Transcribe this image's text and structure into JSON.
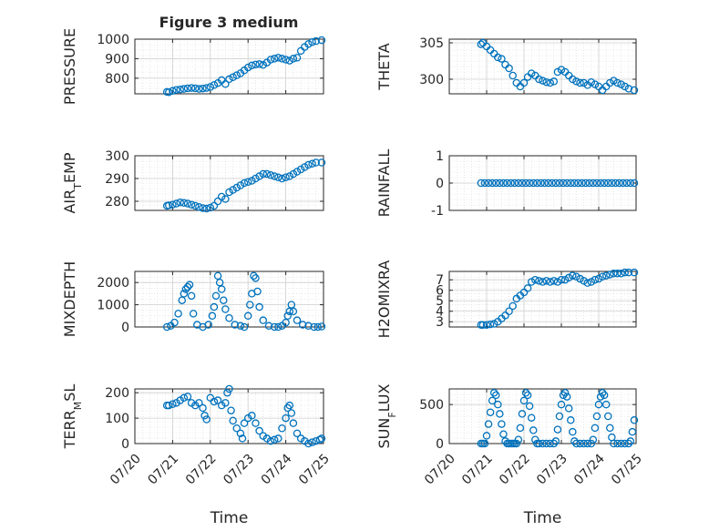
{
  "figure": {
    "title": "Figure 3 medium",
    "marker_color": "#0072BD",
    "axis_color": "#262626",
    "grid_color": "#d9d9d9",
    "x_tick_labels": [
      "07/20",
      "07/21",
      "07/22",
      "07/23",
      "07/24",
      "07/25"
    ],
    "xlabel": "Time"
  },
  "chart_data": [
    {
      "type": "scatter",
      "ylabel": "PRESSURE",
      "ylim": [
        720,
        1000
      ],
      "yticks": [
        800,
        900,
        1000
      ],
      "xlim": [
        0,
        5
      ],
      "x_tick_labels": [],
      "grid": true,
      "minor_grid": true,
      "x": [
        0.85,
        0.9,
        1.0,
        1.1,
        1.2,
        1.3,
        1.4,
        1.5,
        1.6,
        1.7,
        1.8,
        1.9,
        2.0,
        2.1,
        2.2,
        2.3,
        2.4,
        2.5,
        2.6,
        2.7,
        2.8,
        2.9,
        3.0,
        3.1,
        3.2,
        3.3,
        3.4,
        3.5,
        3.6,
        3.7,
        3.8,
        3.9,
        4.0,
        4.1,
        4.2,
        4.3,
        4.4,
        4.5,
        4.6,
        4.7,
        4.8,
        4.95
      ],
      "values": [
        730,
        728,
        735,
        740,
        742,
        745,
        748,
        750,
        748,
        745,
        747,
        750,
        755,
        765,
        775,
        790,
        770,
        795,
        805,
        815,
        825,
        840,
        855,
        865,
        870,
        872,
        868,
        880,
        895,
        900,
        905,
        900,
        895,
        890,
        900,
        905,
        940,
        960,
        975,
        985,
        990,
        995
      ]
    },
    {
      "type": "scatter",
      "ylabel": "THETA",
      "ylim": [
        298,
        305.5
      ],
      "yticks": [
        300,
        305
      ],
      "xlim": [
        0,
        5
      ],
      "x_tick_labels": [],
      "grid": true,
      "minor_grid": true,
      "x": [
        0.85,
        0.9,
        1.0,
        1.1,
        1.2,
        1.3,
        1.4,
        1.5,
        1.6,
        1.7,
        1.8,
        1.9,
        2.0,
        2.1,
        2.2,
        2.3,
        2.4,
        2.5,
        2.6,
        2.7,
        2.8,
        2.9,
        3.0,
        3.1,
        3.2,
        3.3,
        3.4,
        3.5,
        3.6,
        3.7,
        3.8,
        3.9,
        4.0,
        4.1,
        4.2,
        4.3,
        4.4,
        4.5,
        4.6,
        4.7,
        4.8,
        4.95
      ],
      "values": [
        304.8,
        305.0,
        304.5,
        304.0,
        303.5,
        303.0,
        302.8,
        302.0,
        301.5,
        300.5,
        299.5,
        299.0,
        299.5,
        300.3,
        300.8,
        300.5,
        300.0,
        299.8,
        299.6,
        299.5,
        299.7,
        301.0,
        301.3,
        301.0,
        300.5,
        300.0,
        299.7,
        299.5,
        299.5,
        299.2,
        299.6,
        299.3,
        299.0,
        298.5,
        299.0,
        299.5,
        299.8,
        299.5,
        299.3,
        299.0,
        298.7,
        298.5
      ]
    },
    {
      "type": "scatter",
      "ylabel": "AIR_TEMP",
      "ylim": [
        276,
        300
      ],
      "yticks": [
        280,
        290,
        300
      ],
      "xlim": [
        0,
        5
      ],
      "x_tick_labels": [],
      "grid": true,
      "minor_grid": true,
      "x": [
        0.85,
        0.9,
        1.0,
        1.1,
        1.2,
        1.3,
        1.4,
        1.5,
        1.6,
        1.7,
        1.8,
        1.9,
        2.0,
        2.1,
        2.2,
        2.3,
        2.4,
        2.5,
        2.6,
        2.7,
        2.8,
        2.9,
        3.0,
        3.1,
        3.2,
        3.3,
        3.4,
        3.5,
        3.6,
        3.7,
        3.8,
        3.9,
        4.0,
        4.1,
        4.2,
        4.3,
        4.4,
        4.5,
        4.6,
        4.7,
        4.8,
        4.95
      ],
      "values": [
        278,
        278.2,
        278.5,
        279,
        279.5,
        279.3,
        279,
        278.5,
        278,
        277.5,
        277,
        276.8,
        277.2,
        278,
        280,
        282,
        281,
        284,
        285,
        286,
        287,
        288,
        288.5,
        289,
        290,
        291,
        292,
        292,
        291.5,
        291,
        290.5,
        290,
        290.5,
        291,
        292,
        293,
        294,
        295,
        296,
        296.5,
        297,
        297
      ]
    },
    {
      "type": "scatter",
      "ylabel": "RAINFALL",
      "ylim": [
        -1,
        1
      ],
      "yticks": [
        -1,
        0,
        1
      ],
      "xlim": [
        0,
        5
      ],
      "x_tick_labels": [],
      "grid": true,
      "minor_grid": true,
      "x": [
        0.85,
        0.95,
        1.05,
        1.15,
        1.25,
        1.35,
        1.45,
        1.55,
        1.65,
        1.75,
        1.85,
        1.95,
        2.05,
        2.15,
        2.25,
        2.35,
        2.45,
        2.55,
        2.65,
        2.75,
        2.85,
        2.95,
        3.05,
        3.15,
        3.25,
        3.35,
        3.45,
        3.55,
        3.65,
        3.75,
        3.85,
        3.95,
        4.05,
        4.15,
        4.25,
        4.35,
        4.45,
        4.55,
        4.65,
        4.75,
        4.85,
        4.95
      ],
      "values": [
        0,
        0,
        0,
        0,
        0,
        0,
        0,
        0,
        0,
        0,
        0,
        0,
        0,
        0,
        0,
        0,
        0,
        0,
        0,
        0,
        0,
        0,
        0,
        0,
        0,
        0,
        0,
        0,
        0,
        0,
        0,
        0,
        0,
        0,
        0,
        0,
        0,
        0,
        0,
        0,
        0,
        0
      ]
    },
    {
      "type": "scatter",
      "ylabel": "MIXDEPTH",
      "ylim": [
        0,
        2500
      ],
      "yticks": [
        0,
        1000,
        2000
      ],
      "xlim": [
        0,
        5
      ],
      "x_tick_labels": [],
      "grid": true,
      "minor_grid": true,
      "x": [
        0.85,
        0.95,
        1.05,
        1.15,
        1.25,
        1.3,
        1.35,
        1.4,
        1.45,
        1.5,
        1.55,
        1.65,
        1.8,
        1.95,
        2.05,
        2.1,
        2.15,
        2.2,
        2.25,
        2.3,
        2.35,
        2.4,
        2.5,
        2.65,
        2.8,
        2.9,
        3.0,
        3.05,
        3.1,
        3.15,
        3.2,
        3.25,
        3.3,
        3.4,
        3.55,
        3.7,
        3.8,
        3.9,
        4.0,
        4.05,
        4.1,
        4.15,
        4.2,
        4.3,
        4.45,
        4.6,
        4.75,
        4.85,
        4.95
      ],
      "values": [
        0,
        50,
        200,
        600,
        1200,
        1500,
        1700,
        1800,
        1900,
        1400,
        600,
        100,
        0,
        100,
        500,
        900,
        1400,
        2300,
        2000,
        1700,
        1200,
        800,
        400,
        100,
        50,
        0,
        500,
        1000,
        1500,
        2300,
        2200,
        1600,
        900,
        300,
        50,
        0,
        0,
        50,
        200,
        500,
        700,
        1000,
        700,
        300,
        100,
        50,
        0,
        0,
        20
      ]
    },
    {
      "type": "scatter",
      "ylabel": "H2OMIXRA",
      "ylim": [
        2.5,
        7.8
      ],
      "yticks": [
        3,
        4,
        5,
        6,
        7
      ],
      "xlim": [
        0,
        5
      ],
      "x_tick_labels": [],
      "grid": true,
      "minor_grid": true,
      "x": [
        0.85,
        0.9,
        1.0,
        1.1,
        1.2,
        1.3,
        1.4,
        1.5,
        1.6,
        1.7,
        1.8,
        1.9,
        2.0,
        2.1,
        2.2,
        2.3,
        2.4,
        2.5,
        2.6,
        2.7,
        2.8,
        2.9,
        3.0,
        3.1,
        3.2,
        3.3,
        3.4,
        3.5,
        3.6,
        3.7,
        3.8,
        3.9,
        4.0,
        4.1,
        4.2,
        4.3,
        4.4,
        4.5,
        4.6,
        4.7,
        4.8,
        4.95
      ],
      "values": [
        2.7,
        2.7,
        2.7,
        2.75,
        2.8,
        3.0,
        3.3,
        3.6,
        4.0,
        4.5,
        5.2,
        5.5,
        5.8,
        6.2,
        6.8,
        7.0,
        6.9,
        6.8,
        6.9,
        6.8,
        6.9,
        6.8,
        7.0,
        7.0,
        7.2,
        7.4,
        7.3,
        7.1,
        6.9,
        6.7,
        6.8,
        7.0,
        7.1,
        7.3,
        7.4,
        7.5,
        7.6,
        7.6,
        7.6,
        7.7,
        7.7,
        7.7
      ]
    },
    {
      "type": "scatter",
      "ylabel": "TERR_MSL",
      "ylim": [
        0,
        215
      ],
      "yticks": [
        0,
        100,
        200
      ],
      "xlim": [
        0,
        5
      ],
      "x_tick_labels": [
        "07/20",
        "07/21",
        "07/22",
        "07/23",
        "07/24",
        "07/25"
      ],
      "grid": true,
      "minor_grid": true,
      "x": [
        0.85,
        0.9,
        1.0,
        1.1,
        1.2,
        1.3,
        1.4,
        1.5,
        1.6,
        1.7,
        1.8,
        1.85,
        1.9,
        2.0,
        2.1,
        2.2,
        2.3,
        2.4,
        2.45,
        2.5,
        2.55,
        2.6,
        2.7,
        2.8,
        2.85,
        2.9,
        3.0,
        3.1,
        3.2,
        3.3,
        3.4,
        3.5,
        3.6,
        3.7,
        3.8,
        3.9,
        4.0,
        4.05,
        4.1,
        4.15,
        4.2,
        4.3,
        4.4,
        4.5,
        4.6,
        4.7,
        4.8,
        4.9,
        4.95
      ],
      "values": [
        150,
        150,
        155,
        160,
        170,
        180,
        185,
        160,
        150,
        160,
        140,
        110,
        95,
        180,
        165,
        170,
        150,
        160,
        200,
        215,
        130,
        90,
        60,
        40,
        20,
        80,
        100,
        110,
        80,
        50,
        30,
        20,
        10,
        15,
        20,
        60,
        100,
        140,
        150,
        120,
        80,
        40,
        20,
        10,
        0,
        5,
        10,
        15,
        20
      ]
    },
    {
      "type": "scatter",
      "ylabel": "SUN_FLUX",
      "ylim": [
        0,
        700
      ],
      "yticks": [
        0,
        500
      ],
      "xlim": [
        0,
        5
      ],
      "x_tick_labels": [
        "07/20",
        "07/21",
        "07/22",
        "07/23",
        "07/24",
        "07/25"
      ],
      "grid": true,
      "minor_grid": true,
      "x": [
        0.85,
        0.9,
        0.95,
        1.0,
        1.05,
        1.1,
        1.15,
        1.2,
        1.25,
        1.3,
        1.35,
        1.4,
        1.45,
        1.5,
        1.55,
        1.6,
        1.65,
        1.7,
        1.75,
        1.8,
        1.85,
        1.9,
        1.95,
        2.0,
        2.05,
        2.1,
        2.15,
        2.2,
        2.25,
        2.3,
        2.35,
        2.4,
        2.5,
        2.6,
        2.7,
        2.8,
        2.85,
        2.9,
        2.95,
        3.0,
        3.05,
        3.1,
        3.15,
        3.2,
        3.25,
        3.3,
        3.35,
        3.4,
        3.5,
        3.6,
        3.7,
        3.8,
        3.85,
        3.9,
        3.95,
        4.0,
        4.05,
        4.1,
        4.15,
        4.2,
        4.25,
        4.3,
        4.35,
        4.4,
        4.5,
        4.6,
        4.7,
        4.8,
        4.85,
        4.9,
        4.95
      ],
      "values": [
        0,
        0,
        0,
        100,
        250,
        400,
        550,
        650,
        620,
        500,
        380,
        250,
        120,
        30,
        0,
        0,
        0,
        0,
        0,
        0,
        50,
        200,
        380,
        550,
        650,
        620,
        480,
        330,
        170,
        50,
        0,
        0,
        0,
        0,
        0,
        0,
        30,
        180,
        350,
        500,
        620,
        650,
        600,
        450,
        300,
        150,
        30,
        0,
        0,
        0,
        0,
        0,
        50,
        200,
        350,
        500,
        600,
        650,
        620,
        500,
        350,
        200,
        80,
        0,
        0,
        0,
        0,
        0,
        30,
        150,
        300
      ]
    }
  ]
}
